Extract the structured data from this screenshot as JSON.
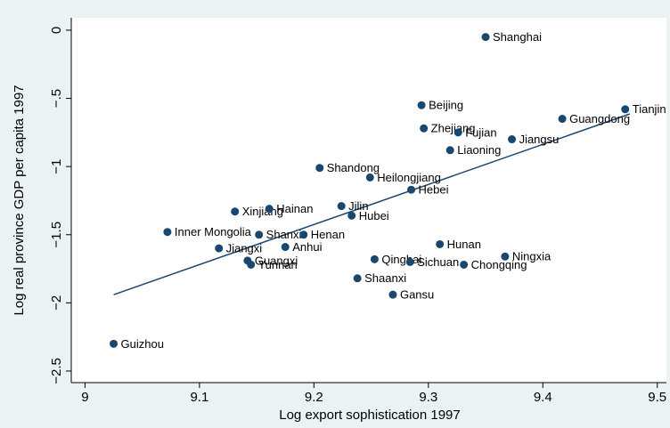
{
  "chart_data": {
    "type": "scatter",
    "x_label": "Log export sophistication 1997",
    "y_label": "Log real province GDP per capita 1997",
    "color": "#1a476f",
    "categories": [
      "Shanghai",
      "Beijing",
      "Tianjin",
      "Guangdong",
      "Zhejiang",
      "Fujian",
      "Jiangsu",
      "Liaoning",
      "Shandong",
      "Heilongjiang",
      "Hebei",
      "Jilin",
      "Xinjiang",
      "Hainan",
      "Hubei",
      "Inner Mongolia",
      "Shanxi",
      "Henan",
      "Hunan",
      "Anhui",
      "Jiangxi",
      "Ningxia",
      "Guangxi",
      "Qinghai",
      "Sichuan",
      "Yunnan",
      "Chongqing",
      "Shaanxi",
      "Gansu",
      "Guizhou"
    ],
    "x": [
      9.35,
      9.294,
      9.472,
      9.417,
      9.296,
      9.326,
      9.373,
      9.319,
      9.205,
      9.249,
      9.285,
      9.224,
      9.131,
      9.161,
      9.233,
      9.072,
      9.152,
      9.191,
      9.31,
      9.175,
      9.117,
      9.367,
      9.142,
      9.253,
      9.284,
      9.145,
      9.331,
      9.238,
      9.269,
      9.025
    ],
    "values": [
      -0.05,
      -0.55,
      -0.58,
      -0.65,
      -0.72,
      -0.75,
      -0.8,
      -0.88,
      -1.01,
      -1.08,
      -1.17,
      -1.29,
      -1.33,
      -1.31,
      -1.36,
      -1.48,
      -1.5,
      -1.5,
      -1.57,
      -1.59,
      -1.6,
      -1.66,
      -1.69,
      -1.68,
      -1.7,
      -1.72,
      -1.72,
      -1.82,
      -1.94,
      -2.3
    ],
    "fit_line": {
      "x": [
        9.025,
        9.476
      ],
      "values": [
        -1.94,
        -0.614
      ]
    },
    "xlim": [
      8.988,
      9.508
    ],
    "ylim": [
      -2.585,
      0.091
    ],
    "xticks": [
      9,
      9.1,
      9.2,
      9.3,
      9.4,
      9.5
    ],
    "yticks": [
      0,
      {
        "value": -0.5,
        "label": "−.5"
      },
      {
        "value": -1,
        "label": "−1"
      },
      {
        "value": -1.5,
        "label": "−1.5"
      },
      {
        "value": -2,
        "label": "−2"
      },
      {
        "value": -2.5,
        "label": "−2.5"
      }
    ]
  }
}
